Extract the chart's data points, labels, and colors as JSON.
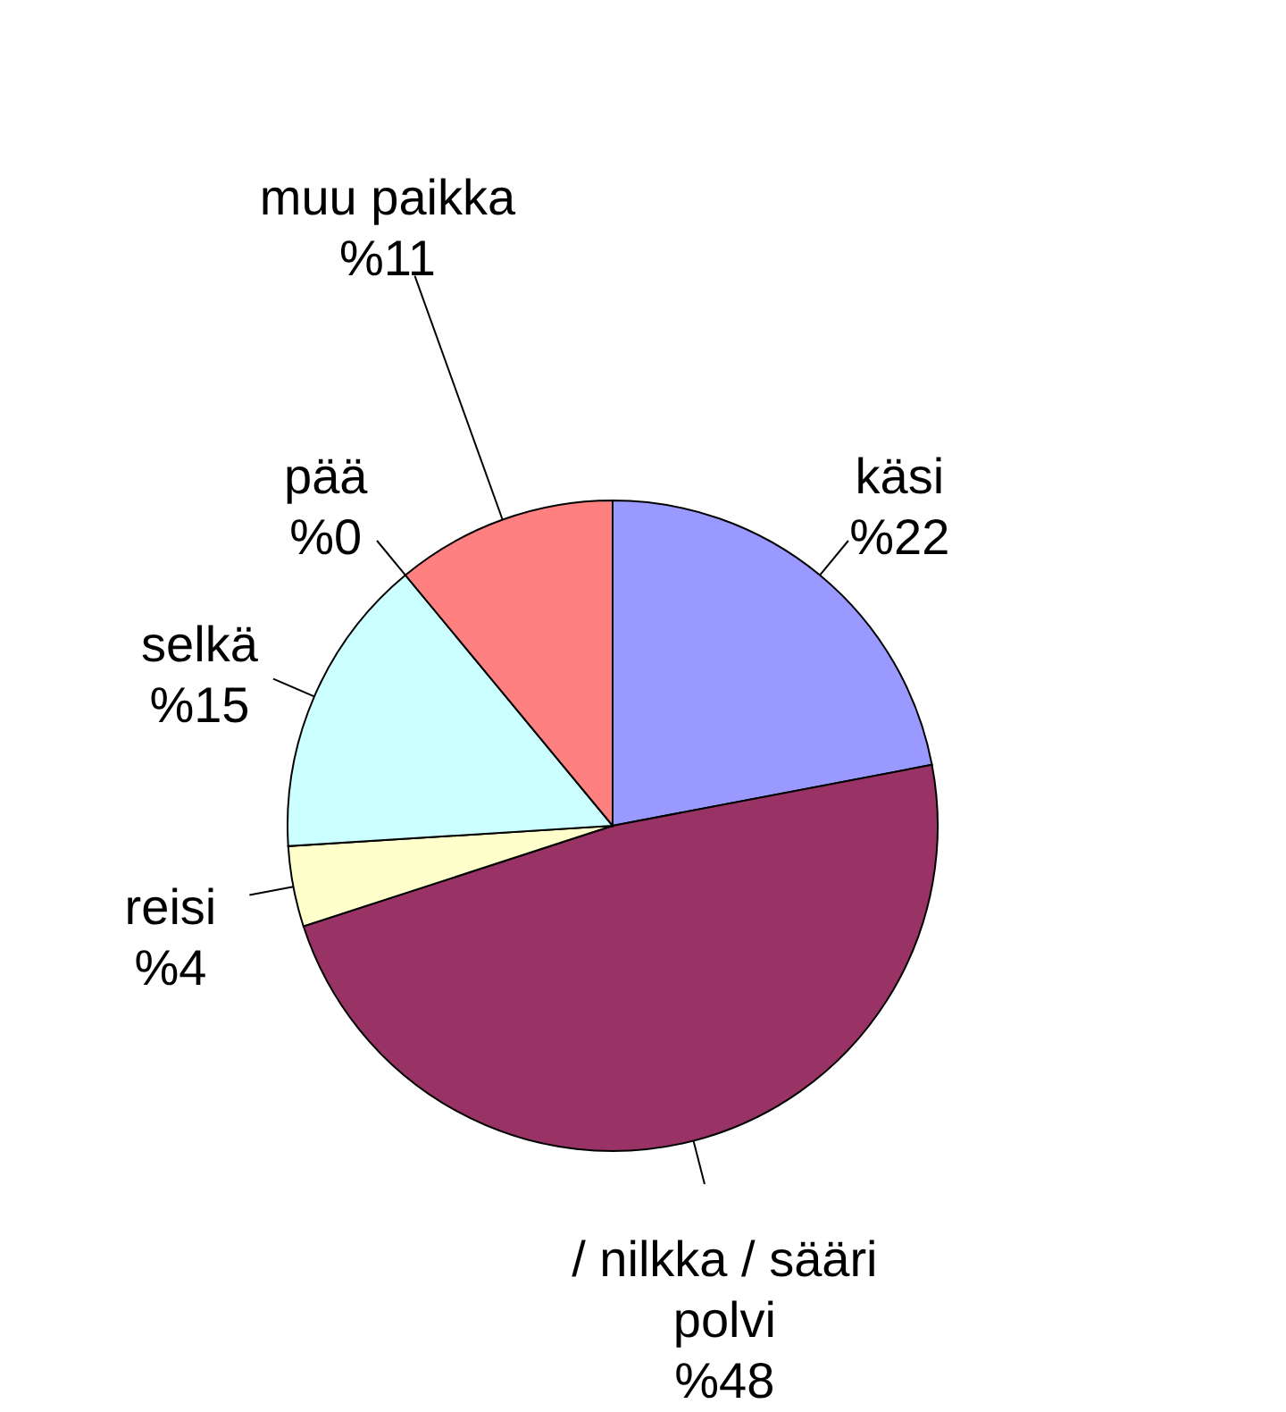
{
  "chart_data": {
    "type": "pie",
    "categories": [
      "käsi",
      "/ nilkka / sääri polvi",
      "reisi",
      "selkä",
      "pää",
      "muu paikka"
    ],
    "values": [
      22,
      48,
      4,
      15,
      0,
      11
    ],
    "value_labels": [
      "%22",
      "%48",
      "%4",
      "%15",
      "%0",
      "%11"
    ],
    "colors": [
      "#9999ff",
      "#993366",
      "#ffffcc",
      "#ccffff",
      "#660066",
      "#ff8080"
    ]
  }
}
